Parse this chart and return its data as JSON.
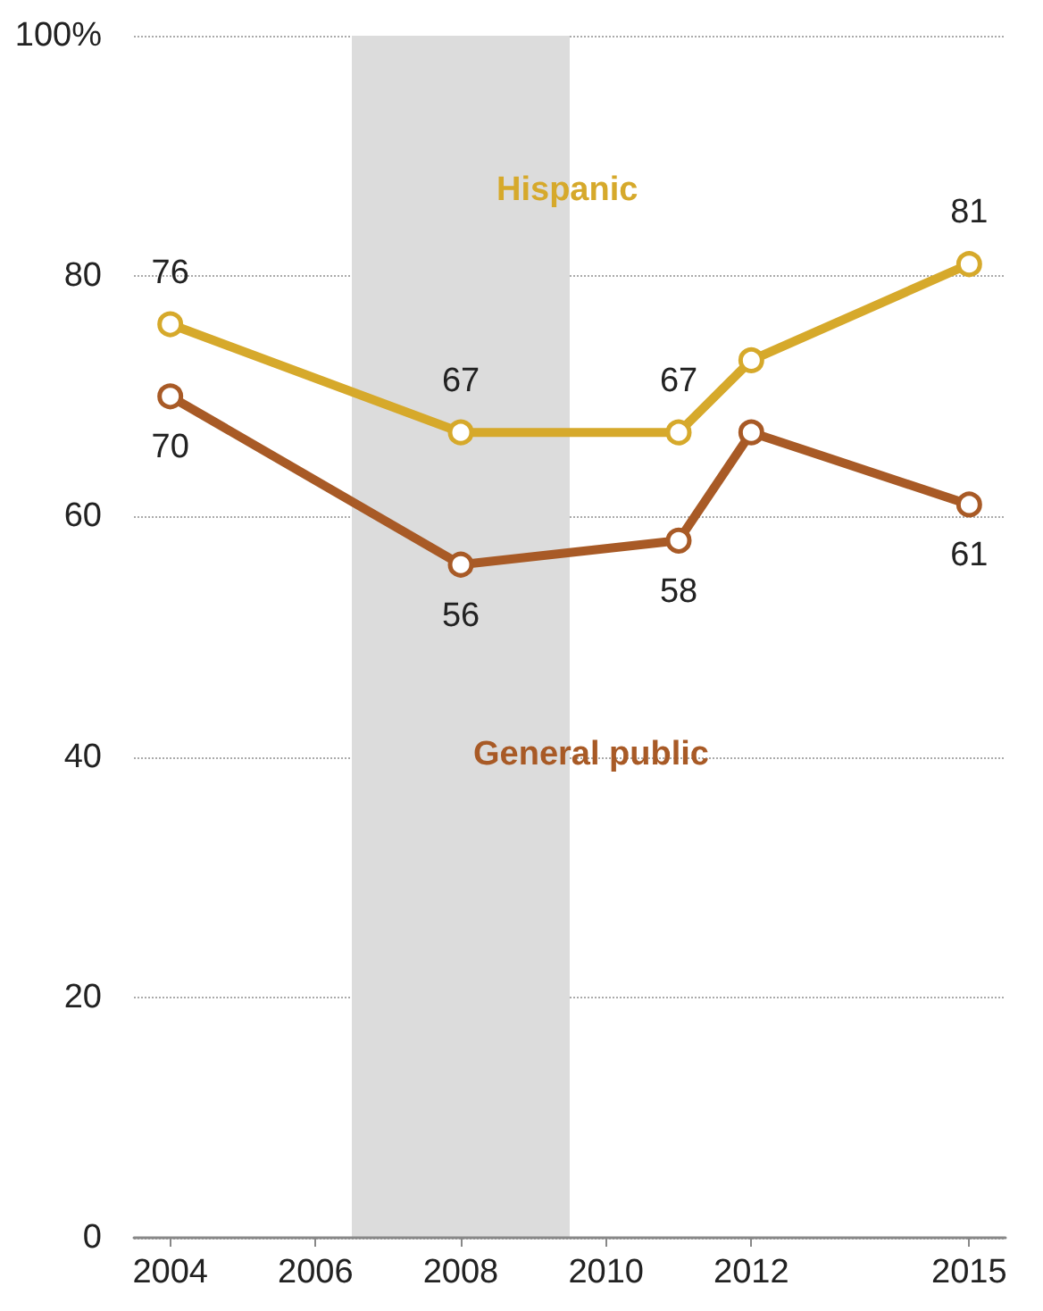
{
  "chart_data": {
    "type": "line",
    "x": [
      2004,
      2008,
      2011,
      2012,
      2015
    ],
    "series": [
      {
        "name": "Hispanic",
        "color": "#d6a92b",
        "values": [
          76,
          67,
          67,
          73,
          81
        ],
        "value_labels": [
          "76",
          "67",
          "67",
          null,
          "81"
        ]
      },
      {
        "name": "General public",
        "color": "#a85a26",
        "values": [
          70,
          56,
          58,
          67,
          61
        ],
        "value_labels": [
          "70",
          "56",
          "58",
          null,
          "61"
        ]
      }
    ],
    "xlim": [
      2003.5,
      2015.5
    ],
    "xticks": [
      2004,
      2006,
      2008,
      2010,
      2012,
      2015
    ],
    "ylim": [
      0,
      100
    ],
    "yticks": [
      0,
      20,
      40,
      60,
      80,
      {
        "value": 100,
        "label": "100%"
      }
    ],
    "bands": [
      {
        "axis": "x",
        "from": 2006.5,
        "to": 2009.5,
        "color": "#dcdcdc"
      }
    ],
    "grid": "y",
    "marker": "circle",
    "line_style": "solid",
    "legend": false
  }
}
